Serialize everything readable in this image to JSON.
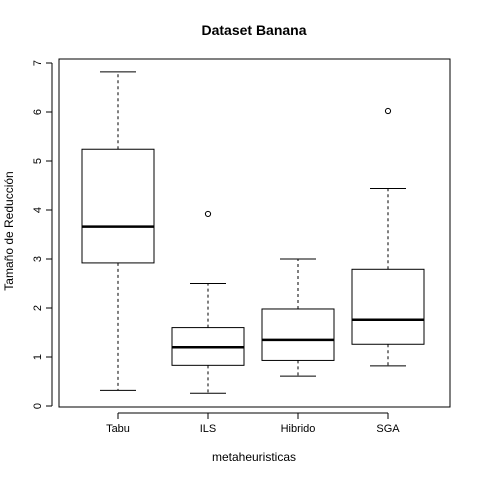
{
  "chart_data": {
    "type": "boxplot",
    "title": "Dataset Banana",
    "xlabel": "metaheuristicas",
    "ylabel": "Tamaño de Reducción",
    "ylim": [
      0,
      7
    ],
    "yticks": [
      "0",
      "1",
      "2",
      "3",
      "4",
      "5",
      "6",
      "7"
    ],
    "grid": false,
    "categories": [
      "Tabu",
      "ILS",
      "Hibrido",
      "SGA"
    ],
    "series": [
      {
        "category": "Tabu",
        "min": 0.32,
        "q1": 2.92,
        "median": 3.66,
        "q3": 5.24,
        "max": 6.82,
        "outliers": []
      },
      {
        "category": "ILS",
        "min": 0.26,
        "q1": 0.83,
        "median": 1.2,
        "q3": 1.6,
        "max": 2.5,
        "outliers": [
          3.92
        ]
      },
      {
        "category": "Hibrido",
        "min": 0.61,
        "q1": 0.93,
        "median": 1.35,
        "q3": 1.98,
        "max": 3.0,
        "outliers": []
      },
      {
        "category": "SGA",
        "min": 0.82,
        "q1": 1.26,
        "median": 1.76,
        "q3": 2.79,
        "max": 4.44,
        "outliers": [
          6.02
        ]
      }
    ]
  }
}
